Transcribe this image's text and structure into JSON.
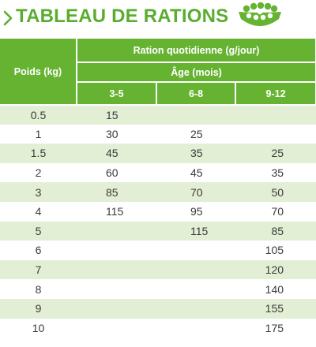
{
  "title": "TABLEAU DE RATIONS",
  "colors": {
    "accent": "#66b332",
    "title": "#5aad2f",
    "row_stripe": "#e2efd4"
  },
  "icons": {
    "chevron": "chevron-right-icon",
    "bowl": "food-bowl-icon"
  },
  "table": {
    "weight_header": "Poids (kg)",
    "ration_header": "Ration quotidienne (g/jour)",
    "age_header": "Âge (mois)",
    "age_groups": [
      "3-5",
      "6-8",
      "9-12"
    ],
    "rows": [
      {
        "weight": "0.5",
        "r1": "15",
        "r2": "",
        "r3": ""
      },
      {
        "weight": "1",
        "r1": "30",
        "r2": "25",
        "r3": ""
      },
      {
        "weight": "1.5",
        "r1": "45",
        "r2": "35",
        "r3": "25"
      },
      {
        "weight": "2",
        "r1": "60",
        "r2": "45",
        "r3": "35"
      },
      {
        "weight": "3",
        "r1": "85",
        "r2": "70",
        "r3": "50"
      },
      {
        "weight": "4",
        "r1": "115",
        "r2": "95",
        "r3": "70"
      },
      {
        "weight": "5",
        "r1": "",
        "r2": "115",
        "r3": "85"
      },
      {
        "weight": "6",
        "r1": "",
        "r2": "",
        "r3": "105"
      },
      {
        "weight": "7",
        "r1": "",
        "r2": "",
        "r3": "120"
      },
      {
        "weight": "8",
        "r1": "",
        "r2": "",
        "r3": "140"
      },
      {
        "weight": "9",
        "r1": "",
        "r2": "",
        "r3": "155"
      },
      {
        "weight": "10",
        "r1": "",
        "r2": "",
        "r3": "175"
      }
    ]
  }
}
